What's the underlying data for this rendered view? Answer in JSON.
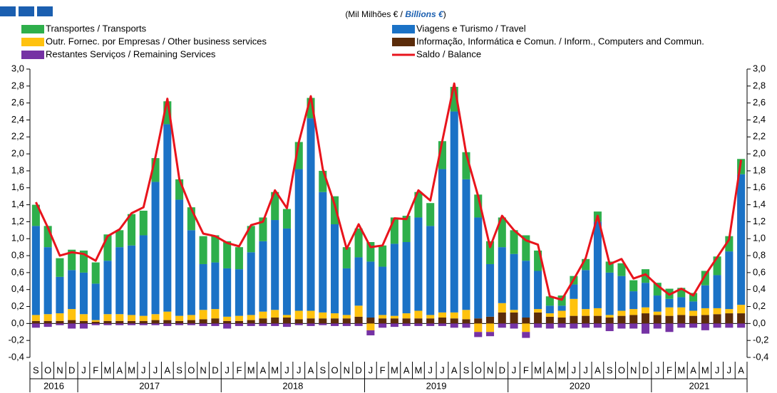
{
  "chart_data": {
    "type": "bar",
    "stacked": true,
    "subtitle": [
      "(Mil Milhões € / ",
      "Billions €",
      ")"
    ],
    "categories": [
      "S",
      "O",
      "N",
      "D",
      "J",
      "F",
      "M",
      "A",
      "M",
      "J",
      "J",
      "A",
      "S",
      "O",
      "N",
      "D",
      "J",
      "F",
      "M",
      "A",
      "M",
      "J",
      "J",
      "A",
      "S",
      "O",
      "N",
      "D",
      "J",
      "F",
      "M",
      "A",
      "M",
      "J",
      "J",
      "A",
      "S",
      "O",
      "N",
      "D",
      "J",
      "F",
      "M",
      "A",
      "M",
      "J",
      "J",
      "A",
      "S",
      "O",
      "N",
      "D",
      "J",
      "F",
      "M",
      "A",
      "M",
      "J",
      "J",
      "A"
    ],
    "years": [
      "2016",
      "2017",
      "2018",
      "2019",
      "2020",
      "2021"
    ],
    "ylim": [
      -0.4,
      3.0
    ],
    "yticks": [
      {
        "value": -0.4,
        "label": "-0,4"
      },
      {
        "value": -0.2,
        "label": "-0,2"
      },
      {
        "value": 0,
        "label": "0,0"
      },
      {
        "value": 0.2,
        "label": "0,2"
      },
      {
        "value": 0.4,
        "label": "0,4"
      },
      {
        "value": 0.6,
        "label": "0,6"
      },
      {
        "value": 0.8,
        "label": "0,8"
      },
      {
        "value": 1.0,
        "label": "1,0"
      },
      {
        "value": 1.2,
        "label": "1,2"
      },
      {
        "value": 1.4,
        "label": "1,4"
      },
      {
        "value": 1.6,
        "label": "1,6"
      },
      {
        "value": 1.8,
        "label": "1,8"
      },
      {
        "value": 2.0,
        "label": "2,0"
      },
      {
        "value": 2.2,
        "label": "2,2"
      },
      {
        "value": 2.4,
        "label": "2,4"
      },
      {
        "value": 2.6,
        "label": "2,6"
      },
      {
        "value": 2.8,
        "label": "2,8"
      },
      {
        "value": 3.0,
        "label": "3,0"
      }
    ],
    "legend": "top",
    "series": [
      {
        "name": "Transportes / Transports",
        "color": "#2eaf4b",
        "values": [
          0.25,
          0.25,
          0.22,
          0.24,
          0.26,
          0.25,
          0.31,
          0.2,
          0.37,
          0.29,
          0.28,
          0.27,
          0.24,
          0.27,
          0.33,
          0.32,
          0.32,
          0.26,
          0.31,
          0.28,
          0.33,
          0.23,
          0.32,
          0.24,
          0.25,
          0.33,
          0.25,
          0.34,
          0.23,
          0.25,
          0.31,
          0.31,
          0.3,
          0.27,
          0.33,
          0.29,
          0.32,
          0.27,
          0.27,
          0.35,
          0.28,
          0.3,
          0.24,
          0.11,
          0.12,
          0.1,
          0.13,
          0.12,
          0.13,
          0.15,
          0.13,
          0.16,
          0.15,
          0.12,
          0.11,
          0.1,
          0.17,
          0.22,
          0.18,
          0.18
        ]
      },
      {
        "name": "Viagens e Turismo / Travel",
        "color": "#1b72c6",
        "values": [
          1.05,
          0.79,
          0.43,
          0.46,
          0.49,
          0.43,
          0.63,
          0.79,
          0.82,
          0.95,
          1.56,
          2.21,
          1.37,
          1.0,
          0.54,
          0.55,
          0.57,
          0.55,
          0.74,
          0.83,
          1.06,
          1.02,
          1.67,
          2.27,
          1.42,
          1.05,
          0.55,
          0.57,
          0.66,
          0.57,
          0.85,
          0.84,
          1.1,
          1.05,
          1.69,
          2.37,
          1.54,
          1.19,
          0.62,
          0.66,
          0.66,
          0.67,
          0.45,
          0.09,
          0.06,
          0.17,
          0.46,
          1.02,
          0.5,
          0.41,
          0.21,
          0.29,
          0.19,
          0.1,
          0.12,
          0.11,
          0.27,
          0.39,
          0.68,
          1.54
        ]
      },
      {
        "name": "Outr. Fornec. por Empresas  / Other business services",
        "color": "#ffc20e",
        "values": [
          0.07,
          0.08,
          0.09,
          0.13,
          0.08,
          0.02,
          0.08,
          0.08,
          0.07,
          0.06,
          0.07,
          0.1,
          0.06,
          0.06,
          0.11,
          0.11,
          0.05,
          0.06,
          0.06,
          0.08,
          0.09,
          0.03,
          0.1,
          0.09,
          0.07,
          0.06,
          0.04,
          0.13,
          -0.08,
          0.04,
          0.03,
          0.06,
          0.09,
          0.04,
          0.06,
          0.07,
          0.11,
          -0.1,
          -0.1,
          0.11,
          0.03,
          -0.1,
          0.04,
          0.04,
          0.08,
          0.2,
          0.08,
          0.09,
          0.03,
          0.06,
          0.07,
          0.07,
          0.04,
          0.1,
          0.09,
          0.06,
          0.08,
          0.07,
          0.05,
          0.1
        ]
      },
      {
        "name": "Informação, Informática e Comun. / Inform., Computers and Commun.",
        "color": "#5b2c0a",
        "values": [
          0.03,
          0.03,
          0.03,
          0.04,
          0.03,
          0.02,
          0.03,
          0.03,
          0.03,
          0.03,
          0.04,
          0.04,
          0.03,
          0.04,
          0.05,
          0.06,
          0.03,
          0.03,
          0.04,
          0.06,
          0.07,
          0.07,
          0.05,
          0.06,
          0.06,
          0.06,
          0.06,
          0.08,
          0.07,
          0.06,
          0.06,
          0.06,
          0.06,
          0.06,
          0.07,
          0.06,
          0.05,
          0.06,
          0.08,
          0.13,
          0.13,
          0.07,
          0.13,
          0.08,
          0.07,
          0.09,
          0.09,
          0.09,
          0.07,
          0.09,
          0.1,
          0.12,
          0.1,
          0.09,
          0.1,
          0.09,
          0.1,
          0.11,
          0.12,
          0.12
        ]
      },
      {
        "name": "Restantes Serviços / Remaining Services",
        "color": "#7532a4",
        "values": [
          -0.05,
          -0.04,
          -0.02,
          -0.06,
          -0.06,
          -0.02,
          -0.02,
          -0.02,
          -0.02,
          -0.02,
          -0.02,
          -0.03,
          -0.02,
          -0.02,
          -0.03,
          -0.03,
          -0.06,
          -0.03,
          -0.03,
          -0.03,
          -0.03,
          -0.04,
          -0.02,
          -0.03,
          -0.02,
          -0.03,
          -0.03,
          -0.03,
          -0.06,
          -0.05,
          -0.04,
          -0.03,
          -0.03,
          -0.03,
          -0.03,
          -0.05,
          -0.05,
          -0.06,
          -0.05,
          -0.05,
          -0.06,
          -0.07,
          -0.05,
          -0.06,
          -0.05,
          -0.06,
          -0.05,
          -0.05,
          -0.09,
          -0.06,
          -0.06,
          -0.12,
          -0.06,
          -0.1,
          -0.05,
          -0.05,
          -0.08,
          -0.05,
          -0.05,
          -0.05
        ]
      },
      {
        "name": "Saldo / Balance",
        "type": "line",
        "color": "#e8141c",
        "values": [
          1.43,
          1.13,
          0.8,
          0.84,
          0.82,
          0.74,
          1.03,
          1.11,
          1.3,
          1.37,
          1.96,
          2.65,
          1.7,
          1.35,
          1.06,
          1.03,
          0.95,
          0.91,
          1.16,
          1.2,
          1.57,
          1.36,
          2.14,
          2.68,
          1.82,
          1.4,
          0.88,
          1.17,
          0.9,
          0.92,
          1.24,
          1.23,
          1.57,
          1.45,
          2.15,
          2.83,
          2.0,
          1.5,
          0.9,
          1.27,
          1.1,
          0.98,
          0.93,
          0.32,
          0.28,
          0.52,
          0.77,
          1.27,
          0.7,
          0.76,
          0.53,
          0.58,
          0.45,
          0.34,
          0.41,
          0.33,
          0.57,
          0.78,
          0.99,
          1.93
        ]
      }
    ]
  }
}
